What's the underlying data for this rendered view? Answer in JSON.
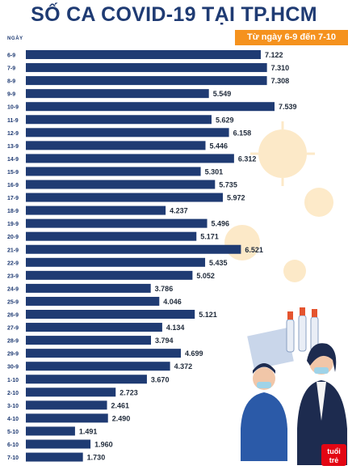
{
  "header": {
    "title": "SỐ CA COVID-19 TẠI TP.HCM",
    "subtitle": "Từ ngày 6-9 đến 7-10"
  },
  "colors": {
    "bar": "#1f3b73",
    "title": "#1f3b73",
    "accent": "#f5921e",
    "decoration": "#f7b33d"
  },
  "chart_data": {
    "type": "bar",
    "orientation": "horizontal",
    "xlabel": "NGÀY",
    "categories": [
      "6-9",
      "7-9",
      "8-9",
      "9-9",
      "10-9",
      "11-9",
      "12-9",
      "13-9",
      "14-9",
      "15-9",
      "16-9",
      "17-9",
      "18-9",
      "19-9",
      "20-9",
      "21-9",
      "22-9",
      "23-9",
      "24-9",
      "25-9",
      "26-9",
      "27-9",
      "28-9",
      "29-9",
      "30-9",
      "1-10",
      "2-10",
      "3-10",
      "4-10",
      "5-10",
      "6-10",
      "7-10"
    ],
    "values": [
      7122,
      7310,
      7308,
      5549,
      7539,
      5629,
      6158,
      5446,
      6312,
      5301,
      5735,
      5972,
      4237,
      5496,
      5171,
      6521,
      5435,
      5052,
      3786,
      4046,
      5121,
      4134,
      3794,
      4699,
      4372,
      3670,
      2723,
      2461,
      2490,
      1491,
      1960,
      1730
    ],
    "value_labels": [
      "7.122",
      "7.310",
      "7.308",
      "5.549",
      "7.539",
      "5.629",
      "6.158",
      "5.446",
      "6.312",
      "5.301",
      "5.735",
      "5.972",
      "4.237",
      "5.496",
      "5.171",
      "6.521",
      "5.435",
      "5.052",
      "3.786",
      "4.046",
      "5.121",
      "4.134",
      "3.794",
      "4.699",
      "4.372",
      "3.670",
      "2.723",
      "2.461",
      "2.490",
      "1.491",
      "1.960",
      "1.730"
    ],
    "grid": false
  }
}
